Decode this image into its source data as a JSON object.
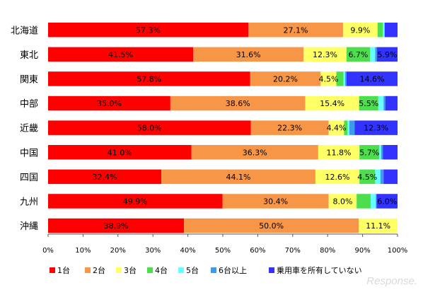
{
  "chart_data": {
    "type": "bar",
    "orientation": "horizontal",
    "stacked": true,
    "categories": [
      "北海道",
      "東北",
      "関東",
      "中部",
      "近畿",
      "中国",
      "四国",
      "九州",
      "沖縄"
    ],
    "series": [
      {
        "name": "1台",
        "color": "#ff0000",
        "values": [
          57.3,
          41.5,
          57.8,
          35.0,
          58.0,
          41.0,
          32.4,
          49.9,
          38.9
        ]
      },
      {
        "name": "2台",
        "color": "#f79646",
        "values": [
          27.1,
          31.6,
          20.2,
          38.6,
          22.3,
          36.3,
          44.1,
          30.4,
          50.0
        ]
      },
      {
        "name": "3台",
        "color": "#ffff66",
        "values": [
          9.9,
          12.3,
          4.5,
          15.4,
          4.4,
          11.8,
          12.6,
          8.0,
          11.1
        ]
      },
      {
        "name": "4台",
        "color": "#4cde4c",
        "values": [
          1.5,
          6.7,
          2.0,
          5.5,
          1.0,
          5.7,
          4.5,
          4.0,
          0
        ]
      },
      {
        "name": "5台",
        "color": "#66ffff",
        "values": [
          0.5,
          1.5,
          0.5,
          1.5,
          0.5,
          0.5,
          1.5,
          1.5,
          0
        ]
      },
      {
        "name": "6台以上",
        "color": "#3d9be9",
        "values": [
          0,
          0.5,
          0.4,
          0.5,
          1.5,
          0.5,
          0.9,
          0.2,
          0
        ]
      },
      {
        "name": "乗用車を所有していない",
        "color": "#3333ff",
        "values": [
          3.7,
          5.9,
          14.6,
          3.5,
          12.3,
          4.2,
          4.0,
          6.0,
          0
        ]
      }
    ],
    "data_labels": [
      [
        "57.3%",
        "27.1%",
        "9.9%",
        null,
        null,
        null,
        null
      ],
      [
        "41.5%",
        "31.6%",
        "12.3%",
        "6.7%",
        null,
        null,
        "5.9%"
      ],
      [
        "57.8%",
        "20.2%",
        "4.5%",
        null,
        null,
        null,
        "14.6%"
      ],
      [
        "35.0%",
        "38.6%",
        "15.4%",
        "5.5%",
        null,
        null,
        null
      ],
      [
        "58.0%",
        "22.3%",
        "4.4%",
        null,
        null,
        null,
        "12.3%"
      ],
      [
        "41.0%",
        "36.3%",
        "11.8%",
        "5.7%",
        null,
        null,
        null
      ],
      [
        "32.4%",
        "44.1%",
        "12.6%",
        "4.5%",
        null,
        null,
        null
      ],
      [
        "49.9%",
        "30.4%",
        "8.0%",
        null,
        null,
        null,
        "6.0%"
      ],
      [
        "38.9%",
        "50.0%",
        "11.1%",
        null,
        null,
        null,
        null
      ]
    ],
    "xticks": [
      "0%",
      "10%",
      "20%",
      "30%",
      "40%",
      "50%",
      "60%",
      "70%",
      "80%",
      "90%",
      "100%"
    ],
    "xlim": [
      0,
      100
    ],
    "legend_position": "bottom",
    "grid": false
  },
  "watermark": "Response."
}
